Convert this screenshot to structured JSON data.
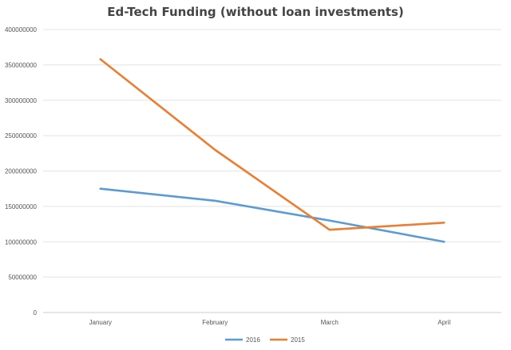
{
  "chart_data": {
    "type": "line",
    "title": "Ed-Tech Funding (without loan investments)",
    "xlabel": "",
    "ylabel": "",
    "categories": [
      "January",
      "February",
      "March",
      "April"
    ],
    "ylim": [
      0,
      400000000
    ],
    "yticks": [
      0,
      50000000,
      100000000,
      150000000,
      200000000,
      250000000,
      300000000,
      350000000,
      400000000
    ],
    "grid": true,
    "legend": "bottom",
    "series": [
      {
        "name": "2016",
        "color": "#5B9BD5",
        "values": [
          175000000,
          158000000,
          130000000,
          100000000
        ]
      },
      {
        "name": "2015",
        "color": "#ED7D31",
        "values": [
          358000000,
          230000000,
          117000000,
          127000000
        ]
      }
    ]
  }
}
